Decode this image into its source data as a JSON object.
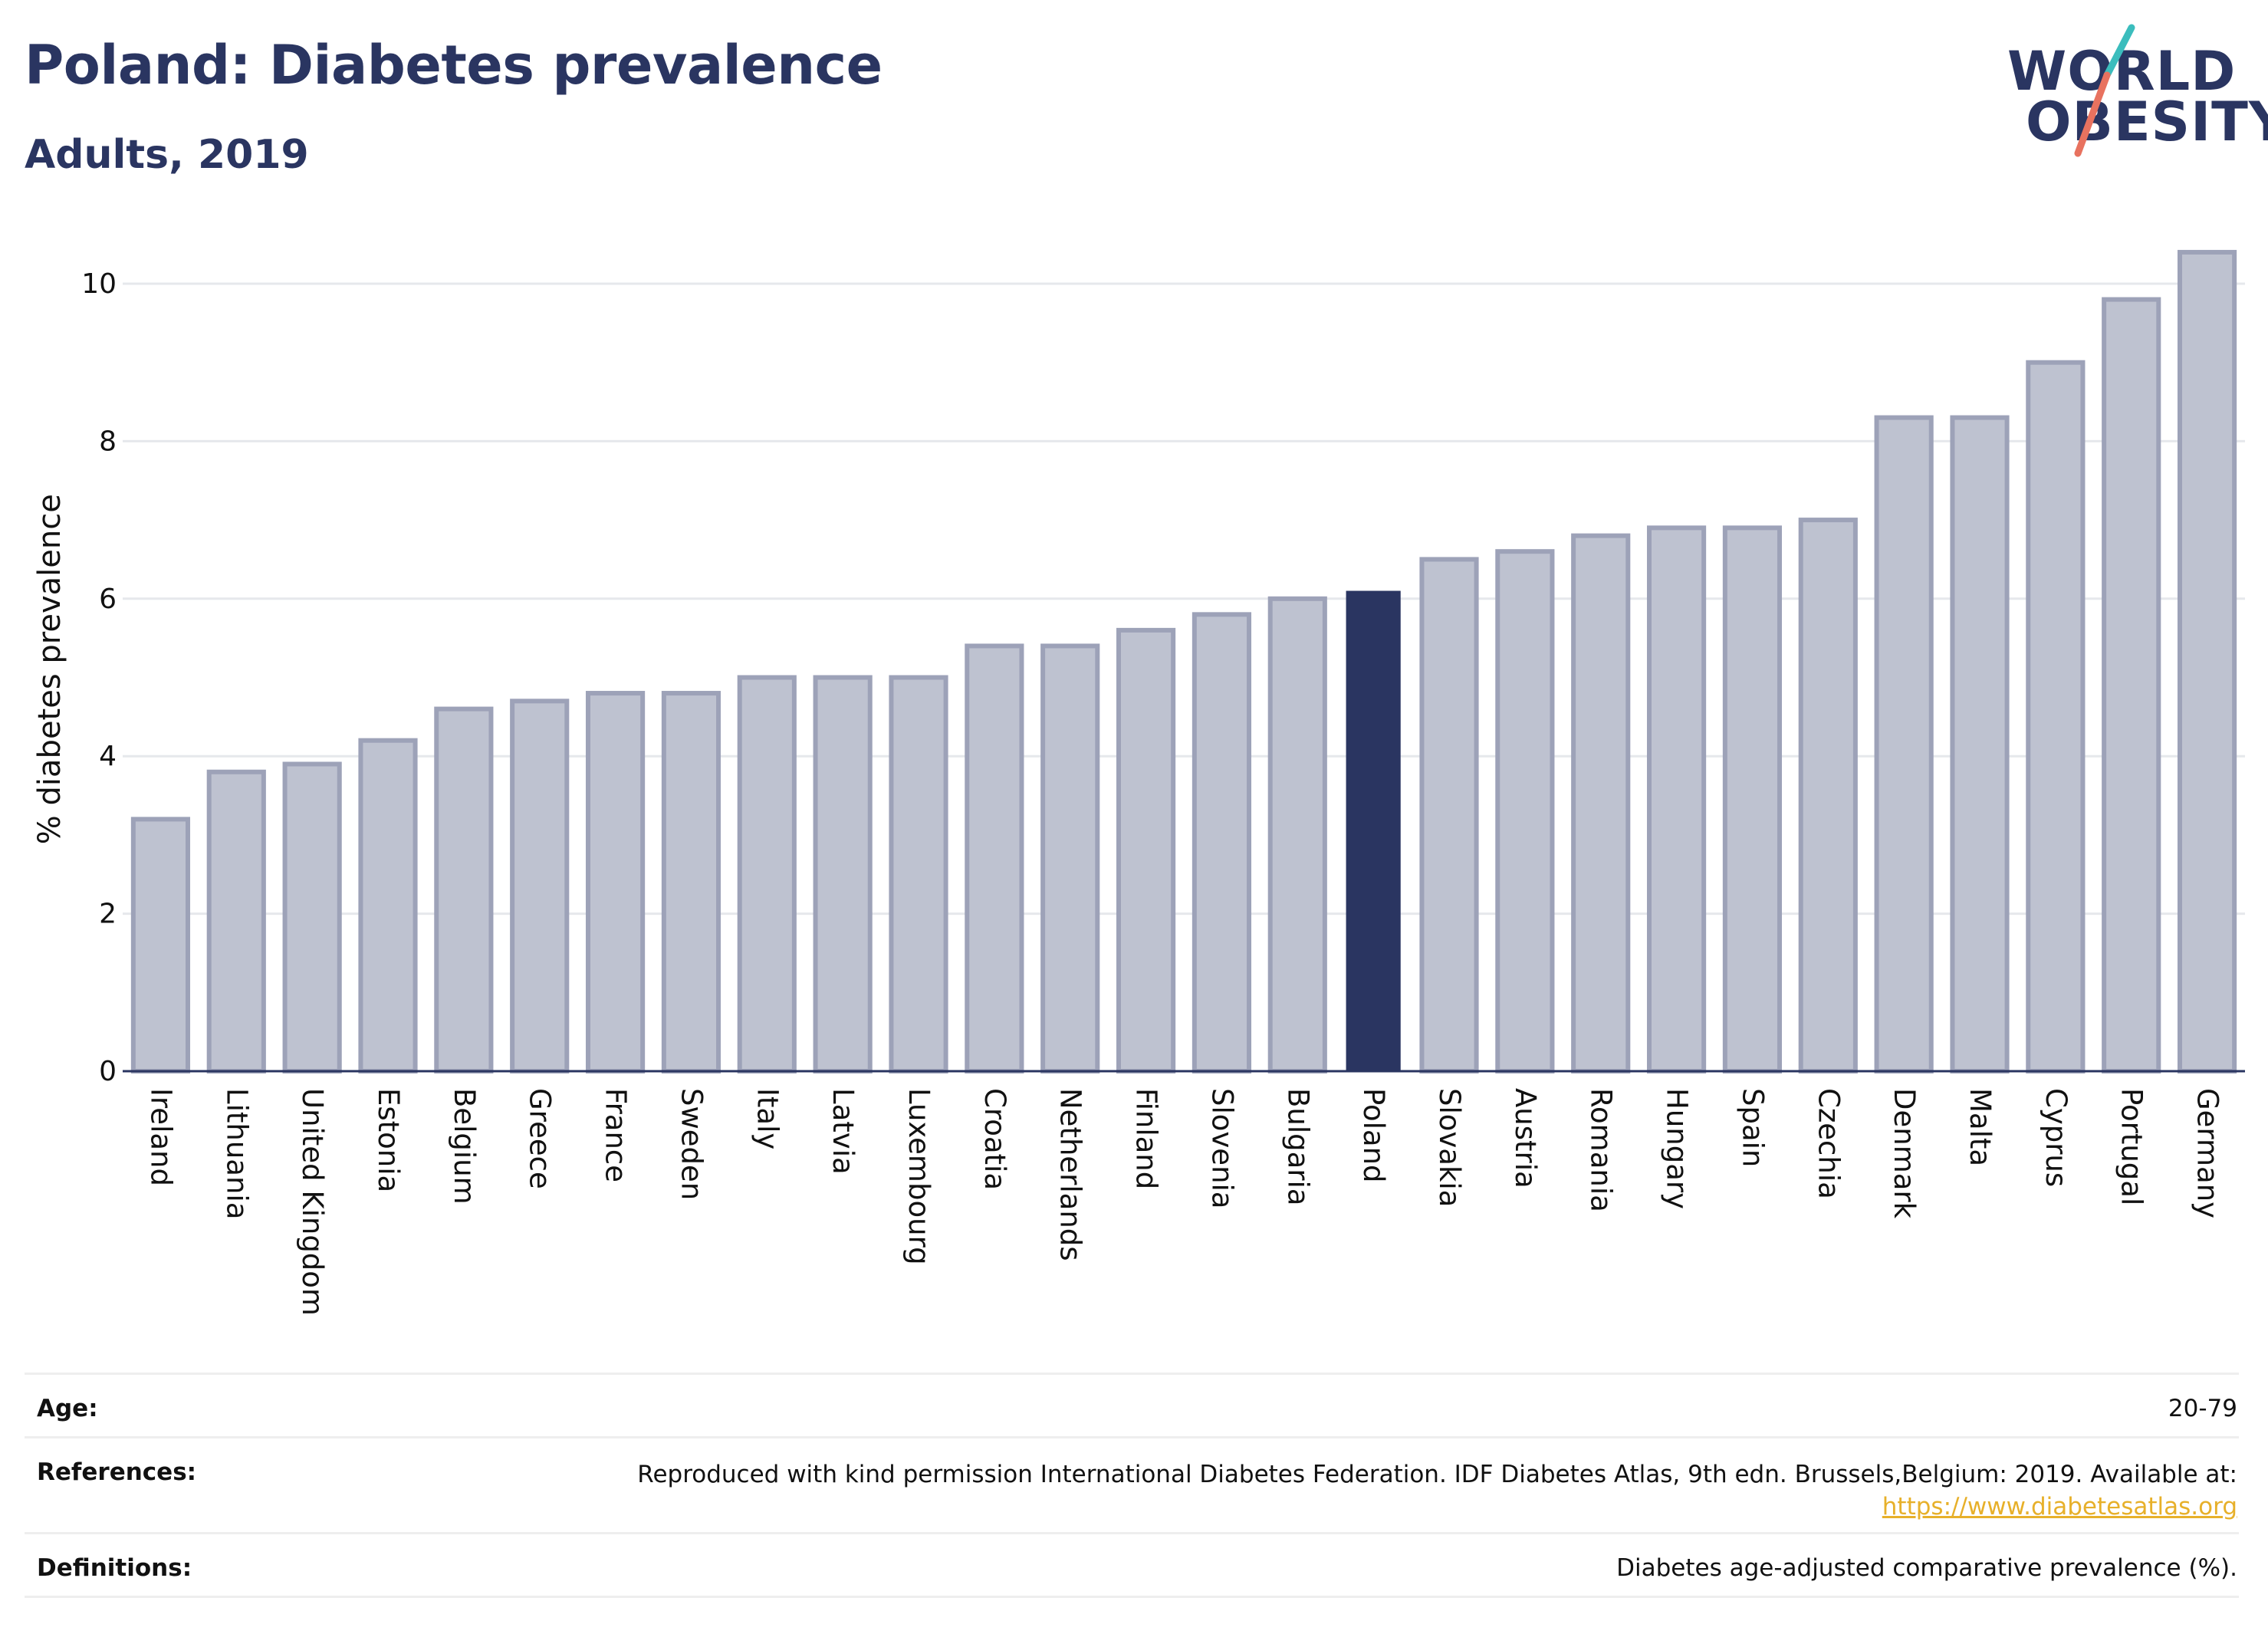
{
  "header": {
    "title": "Poland: Diabetes prevalence",
    "subtitle": "Adults, 2019"
  },
  "logo": {
    "line1": "WORLD",
    "line2": "OBESITY",
    "slash_colors": [
      "#3bbdbd",
      "#e8725f"
    ]
  },
  "chart_data": {
    "type": "bar",
    "title": "",
    "xlabel": "",
    "ylabel": "% diabetes prevalence",
    "ylim": [
      0,
      10.6
    ],
    "yticks": [
      0,
      2,
      4,
      6,
      8,
      10
    ],
    "grid": true,
    "highlight": "Poland",
    "colors": {
      "bar": "#bec2d0",
      "bar_edge": "#9da2b8",
      "highlight": "#2a3561",
      "grid": "#e6e8ec",
      "axis": "#2a3561"
    },
    "categories": [
      "Ireland",
      "Lithuania",
      "United Kingdom",
      "Estonia",
      "Belgium",
      "Greece",
      "France",
      "Sweden",
      "Italy",
      "Latvia",
      "Luxembourg",
      "Croatia",
      "Netherlands",
      "Finland",
      "Slovenia",
      "Bulgaria",
      "Poland",
      "Slovakia",
      "Austria",
      "Romania",
      "Hungary",
      "Spain",
      "Czechia",
      "Denmark",
      "Malta",
      "Cyprus",
      "Portugal",
      "Germany"
    ],
    "values": [
      3.2,
      3.8,
      3.9,
      4.2,
      4.6,
      4.7,
      4.8,
      4.8,
      5.0,
      5.0,
      5.0,
      5.4,
      5.4,
      5.6,
      5.8,
      6.0,
      6.1,
      6.5,
      6.6,
      6.8,
      6.9,
      6.9,
      7.0,
      8.3,
      8.3,
      9.0,
      9.8,
      10.4
    ]
  },
  "info": {
    "age_label": "Age:",
    "age_value": "20-79",
    "references_label": "References:",
    "references_text": "Reproduced with kind permission International Diabetes Federation. IDF Diabetes Atlas, 9th edn. Brussels,Belgium: 2019. Available at:",
    "references_link": "https://www.diabetesatlas.org",
    "definitions_label": "Definitions:",
    "definitions_text": "Diabetes age-adjusted comparative prevalence (%)."
  }
}
